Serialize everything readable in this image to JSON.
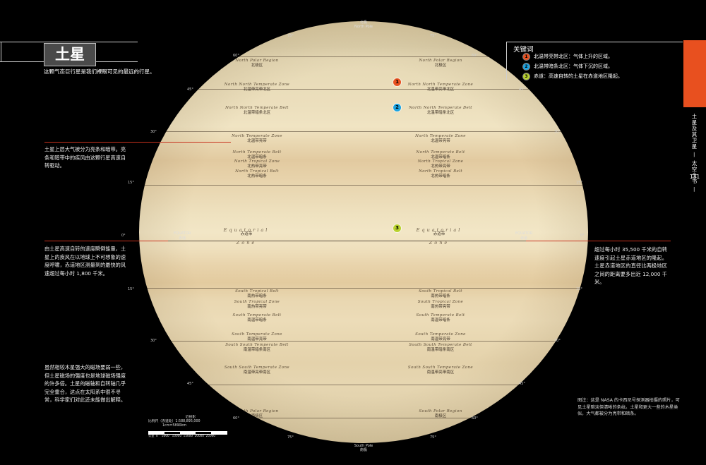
{
  "title": "土星",
  "subtitle": "这颗气态巨行星是我们裸眼可见的最远的行星。",
  "key": {
    "title": "关键词",
    "items": [
      {
        "num": "1",
        "text": "北温带亮带北区：气体上升的区域。",
        "color": "#e8501f"
      },
      {
        "num": "2",
        "text": "北温带暗条北区：气体下沉的区域。",
        "color": "#1aa3e2"
      },
      {
        "num": "3",
        "text": "赤道：高速自转的土星在赤道地区隆起。",
        "color": "#b9d22e"
      }
    ]
  },
  "side_tab": {
    "section": "土星及其卫星 — 太空全书 —",
    "page": "131"
  },
  "left_texts": [
    "土星上层大气被分为亮条和暗带。亮条和暗带中的疾风由这颗行星高速自转驱动。",
    "由土星高速自转的速度瞬倒能量，土星上的疾风在以地球上不可想象的速度呼啸，赤道地区测量到的最快的风速超过每小时 1,800 千米。",
    "虽然相较木星强大的磁场要弱一些，但土星磁场的强度也是地球磁场强度的许多倍。土星的磁轴和自转轴几乎完全重合，这点在太阳系中很不寻常，科学家们对此还未能做出解释。"
  ],
  "right_text": "超过每小时 35,500 千米的自转速度引起土星赤道地区的隆起。土星赤道地区的直径比两极地区之间的距离要多出近 12,000 千米。",
  "caption": "图注：这是 NASA 的卡西尼号探测器拍摄的照片，可见土星暗淡但清晰的条纹。土星和更大一些的木星类似，大气都被分为亮带和暗条。",
  "poles": {
    "north": {
      "zh": "北极",
      "en": "North Pole"
    },
    "south": {
      "zh": "南极",
      "en": "South Pole"
    }
  },
  "equator": {
    "en": "EQUATOR",
    "zh": "赤道",
    "word1": "Equatorial",
    "word2": "Zone",
    "zh_zone": "赤道带"
  },
  "zones": [
    {
      "en": "North Polar Region",
      "zh": "北极区"
    },
    {
      "en": "North North Temperate Zone",
      "zh": "北温带亮带北区"
    },
    {
      "en": "North North Temperate Belt",
      "zh": "北温带暗条北区"
    },
    {
      "en": "North Temperate Zone",
      "zh": "北温带亮带"
    },
    {
      "en": "North Temperate Belt",
      "zh": "北温带暗条"
    },
    {
      "en": "North Tropical Zone",
      "zh": "北热带亮带"
    },
    {
      "en": "North Tropical Belt",
      "zh": "北热带暗条"
    },
    {
      "en": "South Tropical Belt",
      "zh": "南热带暗条"
    },
    {
      "en": "South Tropical Zone",
      "zh": "南热带亮带"
    },
    {
      "en": "South Temperate Belt",
      "zh": "南温带暗条"
    },
    {
      "en": "South Temperate Zone",
      "zh": "南温带亮带"
    },
    {
      "en": "South South Temperate Belt",
      "zh": "南温带暗条南区"
    },
    {
      "en": "South South Temperate Zone",
      "zh": "南温带亮带南区"
    },
    {
      "en": "South Polar Region",
      "zh": "南极区"
    }
  ],
  "latitudes": {
    "n75": "75°",
    "n60": "60°",
    "n45": "45°",
    "n30": "30°",
    "n15": "15°",
    "eq": "0°",
    "s15": "15°",
    "s30": "30°",
    "s45": "45°",
    "s60": "60°",
    "s75": "75°"
  },
  "scale": {
    "line1": "近投影",
    "line2": "比例尺（赤道处）1:588,895,000",
    "line3": "1cm=5890km",
    "line4": "公里  0    5000   10000  15000  20000  25000"
  }
}
